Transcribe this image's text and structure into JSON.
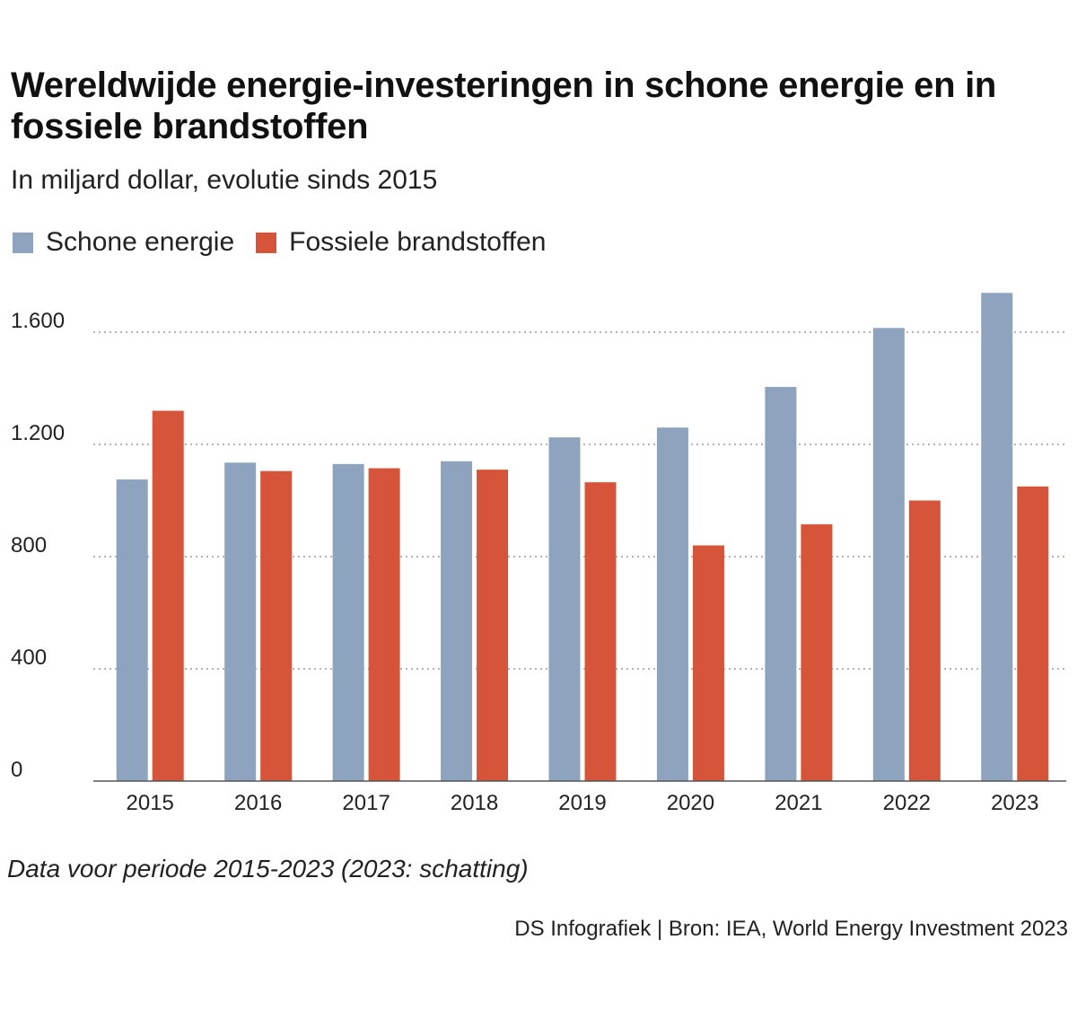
{
  "title": "Wereldwijde energie-investeringen in schone energie en in fossiele brandstoffen",
  "subtitle": "In miljard dollar, evolutie sinds 2015",
  "legend": [
    {
      "label": "Schone energie",
      "color": "#8ea3bd"
    },
    {
      "label": "Fossiele brandstoffen",
      "color": "#d6543a"
    }
  ],
  "note": "Data voor periode 2015-2023 (2023: schatting)",
  "source": "DS Infografiek | Bron: IEA, World Energy Investment 2023",
  "chart_data": {
    "type": "bar",
    "title": "Wereldwijde energie-investeringen in schone energie en in fossiele brandstoffen",
    "subtitle": "In miljard dollar, evolutie sinds 2015",
    "xlabel": "",
    "ylabel": "",
    "categories": [
      "2015",
      "2016",
      "2017",
      "2018",
      "2019",
      "2020",
      "2021",
      "2022",
      "2023"
    ],
    "series": [
      {
        "name": "Schone energie",
        "color": "#8ea3bd",
        "values": [
          1075,
          1135,
          1130,
          1140,
          1225,
          1260,
          1405,
          1615,
          1740
        ]
      },
      {
        "name": "Fossiele brandstoffen",
        "color": "#d6543a",
        "values": [
          1320,
          1105,
          1115,
          1110,
          1065,
          840,
          915,
          1000,
          1050
        ]
      }
    ],
    "ylim": [
      0,
      1800
    ],
    "yticks": [
      0,
      400,
      800,
      1200,
      1600
    ],
    "ytick_labels": [
      "0",
      "400",
      "800",
      "1.200",
      "1.600"
    ],
    "grid": true,
    "legend_position": "top-left"
  }
}
